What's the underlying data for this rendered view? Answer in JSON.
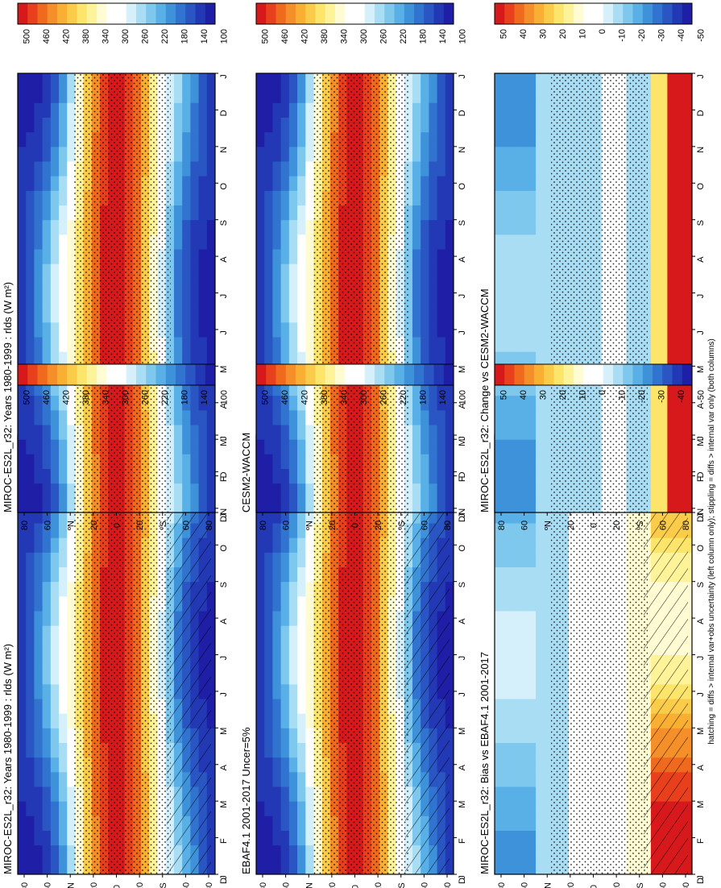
{
  "footnote": "hatching = diffs > internal var+obs uncertainty (left column only); stippling = diffs > internal var only (both columns)",
  "chart_data": [
    {
      "type": "heatmap",
      "row": 0,
      "col": 0,
      "title": "MIROC-ES2L_r32: Years 1980-1999 : rlds (W m²)",
      "field": "abs",
      "hatch": true,
      "x_ticks": [
        "J",
        "F",
        "M",
        "A",
        "M",
        "J",
        "J",
        "A",
        "S",
        "O",
        "N",
        "D",
        "J"
      ],
      "y_ticks": [
        "80",
        "60",
        "ºN",
        "20",
        "0",
        "20",
        "ºS",
        "60",
        "80"
      ],
      "y_label_prefix": "D"
    },
    {
      "type": "heatmap",
      "row": 1,
      "col": 0,
      "title": "EBAF4.1 2001-2017 Uncer=5%",
      "field": "abs",
      "hatch": true,
      "x_ticks": [
        "J",
        "F",
        "M",
        "A",
        "M",
        "J",
        "J",
        "A",
        "S",
        "O",
        "N",
        "D",
        "J"
      ],
      "y_ticks": [
        "80",
        "60",
        "ºN",
        "20",
        "0",
        "20",
        "ºS",
        "60",
        "80"
      ],
      "y_label_prefix": "D"
    },
    {
      "type": "heatmap",
      "row": 2,
      "col": 0,
      "title": "MIROC-ES2L_r32: Bias vs EBAF4.1 2001-2017",
      "field": "bias",
      "hatch": true,
      "x_ticks": [
        "J",
        "F",
        "M",
        "A",
        "M",
        "J",
        "J",
        "A",
        "S",
        "O",
        "N",
        "D",
        "J"
      ],
      "y_ticks": [
        "80",
        "60",
        "ºN",
        "20",
        "0",
        "20",
        "ºS",
        "60",
        "80"
      ],
      "y_label_prefix": "D"
    },
    {
      "type": "heatmap",
      "row": 0,
      "col": 1,
      "title": "MIROC-ES2L_r32: Years 1980-1999 : rlds (W m²)",
      "field": "abs",
      "hatch": false,
      "x_ticks": [
        "J",
        "F",
        "M",
        "A",
        "M",
        "J",
        "J",
        "A",
        "S",
        "O",
        "N",
        "D",
        "J"
      ],
      "y_ticks": [
        "80",
        "60",
        "ºN",
        "20",
        "0",
        "20",
        "ºS",
        "60",
        "80"
      ],
      "y_label_prefix": "D"
    },
    {
      "type": "heatmap",
      "row": 1,
      "col": 1,
      "title": "CESM2-WACCM",
      "field": "abs",
      "hatch": false,
      "x_ticks": [
        "J",
        "F",
        "M",
        "A",
        "M",
        "J",
        "J",
        "A",
        "S",
        "O",
        "N",
        "D",
        "J"
      ],
      "y_ticks": [
        "80",
        "60",
        "ºN",
        "20",
        "0",
        "20",
        "ºS",
        "60",
        "80"
      ],
      "y_label_prefix": "D"
    },
    {
      "type": "heatmap",
      "row": 2,
      "col": 1,
      "title": "MIROC-ES2L_r32: Change vs CESM2-WACCM",
      "field": "change",
      "hatch": false,
      "x_ticks": [
        "J",
        "F",
        "M",
        "A",
        "M",
        "J",
        "J",
        "A",
        "S",
        "O",
        "N",
        "D",
        "J"
      ],
      "y_ticks": [
        "80",
        "60",
        "ºN",
        "20",
        "0",
        "20",
        "ºS",
        "60",
        "80"
      ],
      "y_label_prefix": "D"
    }
  ],
  "colorbars": {
    "abs": {
      "labels": [
        "500",
        "460",
        "420",
        "380",
        "340",
        "300",
        "260",
        "220",
        "180",
        "140",
        "100"
      ],
      "colors": [
        "#d7191c",
        "#e8401c",
        "#f06a1e",
        "#f58f29",
        "#f9b032",
        "#fbcc4a",
        "#fde46a",
        "#fff39a",
        "#fffbd2",
        "#ffffff",
        "#ffffff",
        "#d6f0fb",
        "#a9ddf4",
        "#7ec8ee",
        "#58b0e6",
        "#3e92da",
        "#3174cf",
        "#2956c3",
        "#2338b5",
        "#1f1ea6"
      ]
    },
    "diff": {
      "labels": [
        "50",
        "40",
        "30",
        "20",
        "10",
        "0",
        "-10",
        "-20",
        "-30",
        "-40",
        "-50"
      ],
      "colors": [
        "#d7191c",
        "#e8401c",
        "#f06a1e",
        "#f58f29",
        "#f9b032",
        "#fbcc4a",
        "#fde46a",
        "#fff39a",
        "#fffbd2",
        "#ffffff",
        "#ffffff",
        "#d6f0fb",
        "#a9ddf4",
        "#7ec8ee",
        "#58b0e6",
        "#3e92da",
        "#3174cf",
        "#2956c3",
        "#2338b5",
        "#1f1ea6"
      ]
    }
  }
}
